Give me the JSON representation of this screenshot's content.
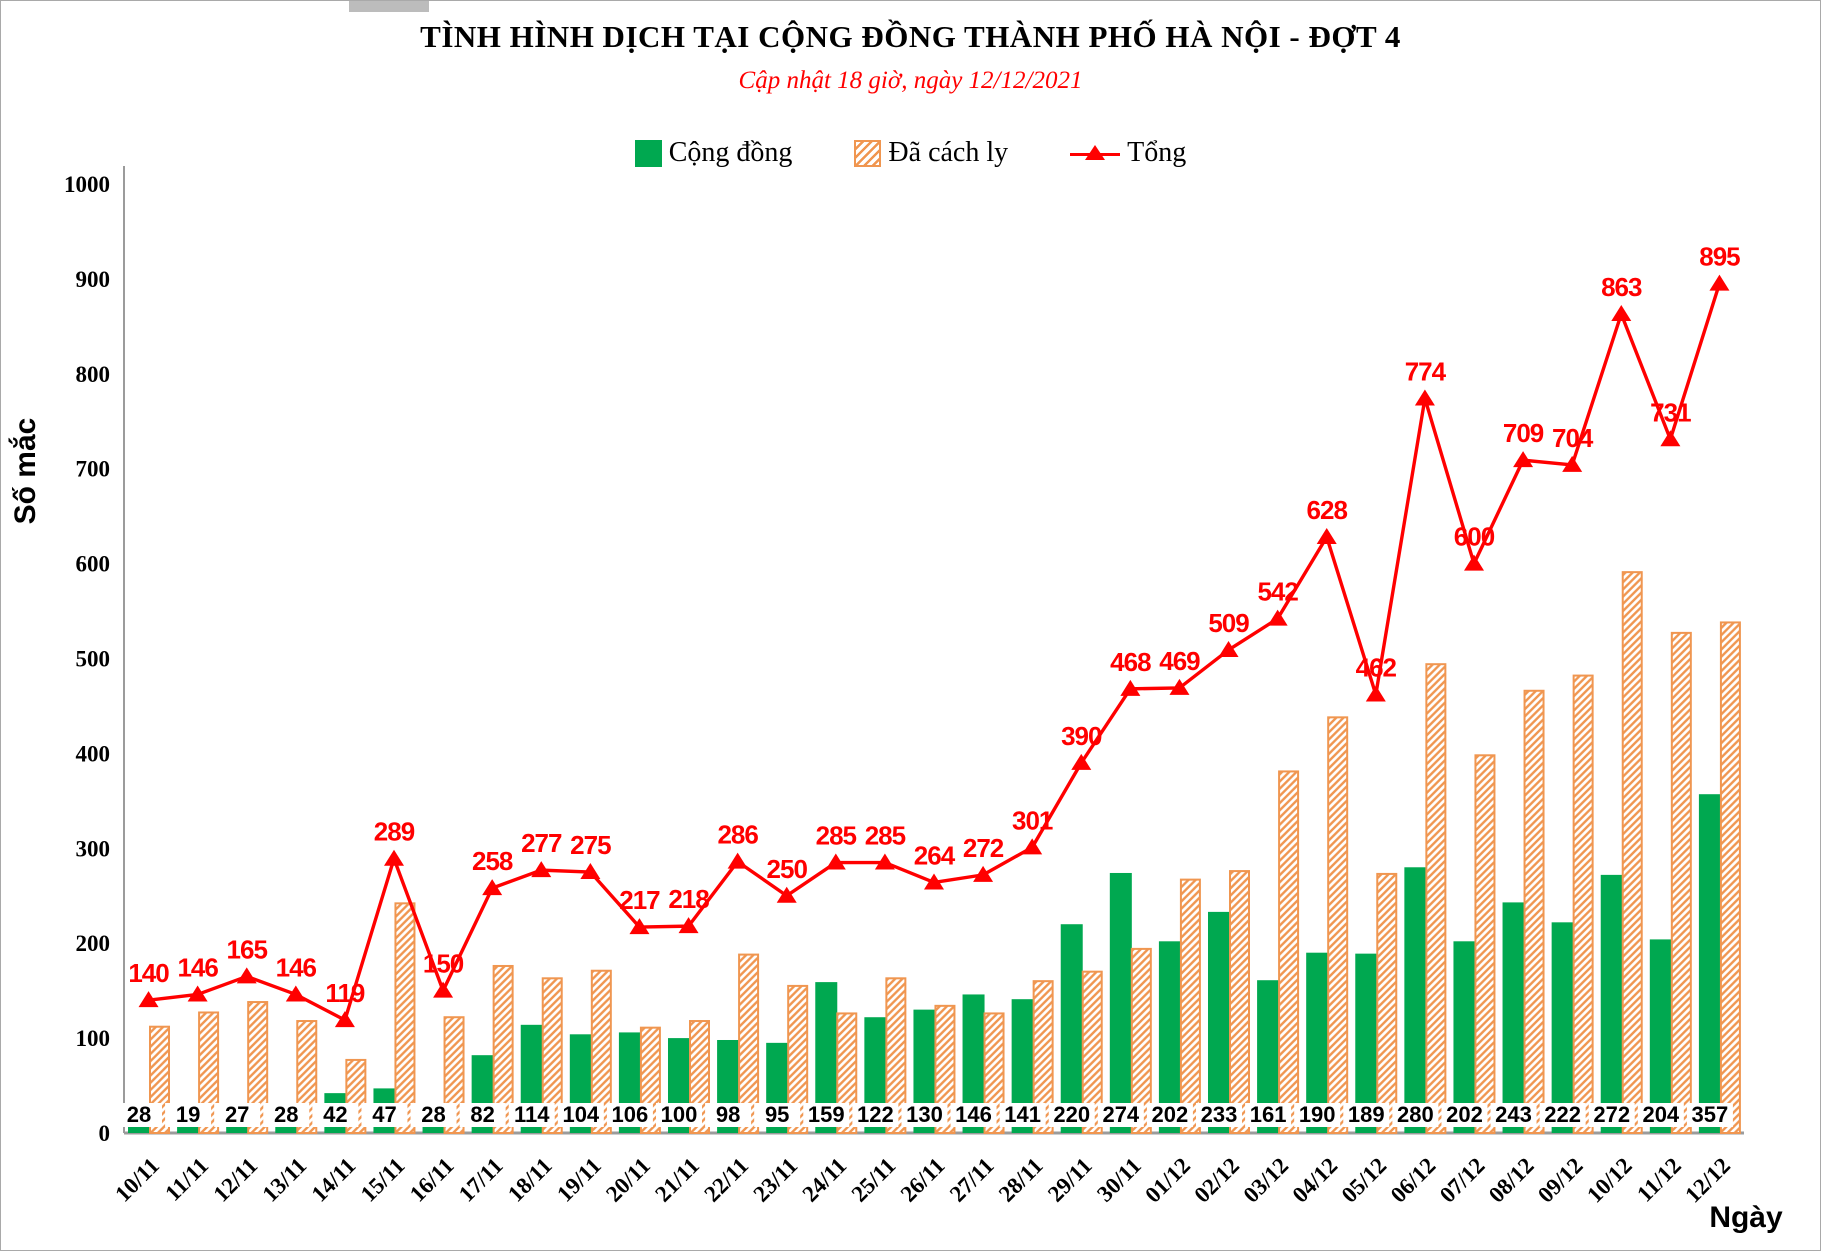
{
  "header": {
    "title": "TÌNH HÌNH DỊCH TẠI CỘNG ĐỒNG THÀNH PHỐ HÀ NỘI - ĐỢT 4",
    "subtitle": "Cập nhật 18 giờ, ngày 12/12/2021"
  },
  "chart_data": {
    "type": "combo",
    "title": "TÌNH HÌNH DỊCH TẠI CỘNG ĐỒNG THÀNH PHỐ HÀ NỘI - ĐỢT 4",
    "subtitle": "Cập nhật 18 giờ, ngày 12/12/2021",
    "xlabel": "Ngày",
    "ylabel": "Số mắc",
    "ylim": [
      0,
      1000
    ],
    "yticks": [
      0,
      100,
      200,
      300,
      400,
      500,
      600,
      700,
      800,
      900,
      1000
    ],
    "grid": false,
    "legend_position": "top-center",
    "categories": [
      "10/11",
      "11/11",
      "12/11",
      "13/11",
      "14/11",
      "15/11",
      "16/11",
      "17/11",
      "18/11",
      "19/11",
      "20/11",
      "21/11",
      "22/11",
      "23/11",
      "24/11",
      "25/11",
      "26/11",
      "27/11",
      "28/11",
      "29/11",
      "30/11",
      "01/12",
      "02/12",
      "03/12",
      "04/12",
      "05/12",
      "06/12",
      "07/12",
      "08/12",
      "09/12",
      "10/12",
      "11/12",
      "12/12"
    ],
    "series": [
      {
        "name": "Cộng đồng",
        "type": "bar",
        "style": "solid",
        "color": "#00A850",
        "data_labels": "black, at bar base on white boxes",
        "values": [
          28,
          19,
          27,
          28,
          42,
          47,
          28,
          82,
          114,
          104,
          106,
          100,
          98,
          95,
          159,
          122,
          130,
          146,
          141,
          220,
          274,
          202,
          233,
          161,
          190,
          189,
          280,
          202,
          243,
          222,
          272,
          204,
          357
        ]
      },
      {
        "name": "Đã cách ly",
        "type": "bar",
        "style": "diagonal-hatch",
        "color": "#F09650",
        "data_labels": "none",
        "values": [
          112,
          127,
          138,
          118,
          77,
          242,
          122,
          176,
          163,
          171,
          111,
          118,
          188,
          155,
          126,
          163,
          134,
          126,
          160,
          170,
          194,
          267,
          276,
          381,
          438,
          273,
          494,
          398,
          466,
          482,
          591,
          527,
          538
        ]
      },
      {
        "name": "Tổng",
        "type": "line",
        "marker": "triangle-up",
        "color": "#FF0000",
        "data_labels": "red, above markers",
        "values": [
          140,
          146,
          165,
          146,
          119,
          289,
          150,
          258,
          277,
          275,
          217,
          218,
          286,
          250,
          285,
          285,
          264,
          272,
          301,
          390,
          468,
          469,
          509,
          542,
          628,
          462,
          774,
          600,
          709,
          704,
          863,
          731,
          895
        ]
      }
    ],
    "colors": {
      "community_green": "#00A850",
      "quarantine_orange": "#F09650",
      "total_red": "#FF0000",
      "axis_gray": "#9B9B9B"
    }
  }
}
